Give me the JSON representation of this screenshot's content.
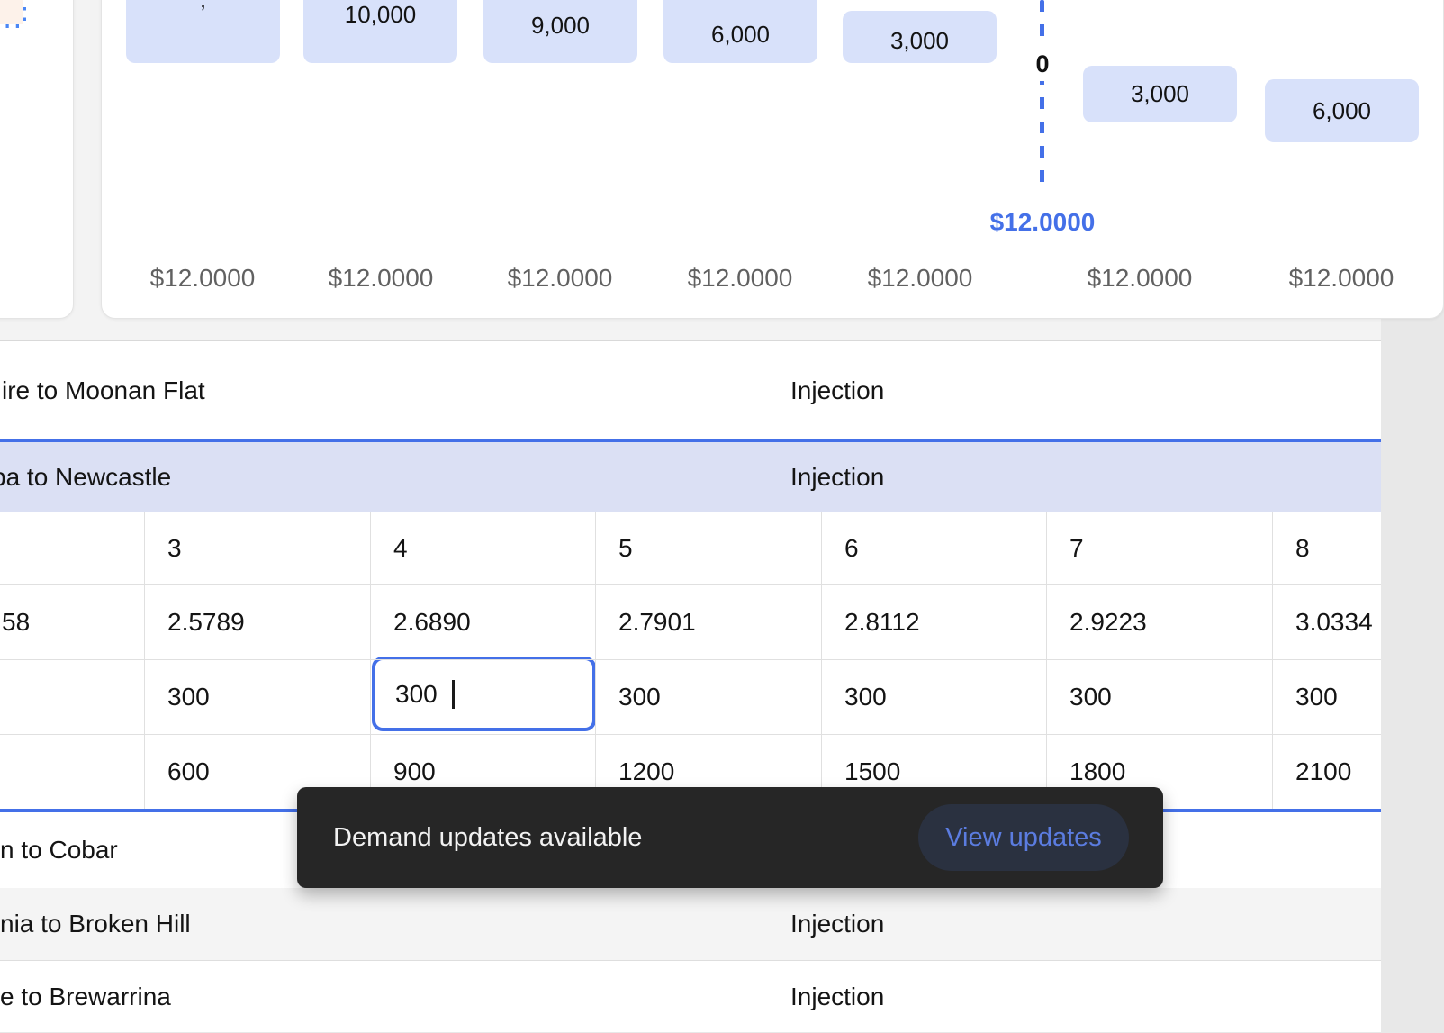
{
  "chart": {
    "bar_labels": [
      ",",
      "10,000",
      "9,000",
      "6,000",
      "3,000",
      "3,000",
      "6,000"
    ],
    "zero_marker": "0",
    "selected_price": "$12.0000",
    "price_axis_labels": [
      "$12.0000",
      "$12.0000",
      "$12.0000",
      "$12.0000",
      "$12.0000",
      "$12.0000",
      "$12.0000"
    ]
  },
  "sections": {
    "moonan": {
      "name": "ire to Moonan Flat",
      "type": "Injection"
    },
    "newcastle": {
      "name": "ba to Newcastle",
      "type": "Injection"
    },
    "cobar": {
      "name": "n to Cobar",
      "type": ""
    },
    "broken_hill": {
      "name": "nia to Broken Hill",
      "type": "Injection"
    },
    "brewarrina": {
      "name": "e to Brewarrina",
      "type": "Injection"
    }
  },
  "grid": {
    "column_headers": [
      "3",
      "4",
      "5",
      "6",
      "7",
      "8"
    ],
    "row_fragments": [
      "58",
      "",
      ""
    ],
    "rows": [
      [
        "2.5789",
        "2.6890",
        "2.7901",
        "2.8112",
        "2.9223",
        "3.0334"
      ],
      [
        "300",
        "300",
        "300",
        "300",
        "300",
        "300"
      ],
      [
        "600",
        "900",
        "1200",
        "1500",
        "1800",
        "2100"
      ]
    ],
    "editing": {
      "row": 1,
      "col": 1,
      "value": "300"
    }
  },
  "toast": {
    "message": "Demand updates available",
    "action": "View updates"
  },
  "colors": {
    "accent_blue": "#4470e8",
    "pill_bg": "#d8e1fa",
    "row_highlight": "#dbe0f4",
    "toast_bg": "#262626",
    "toast_action": "#5b7ce0"
  }
}
